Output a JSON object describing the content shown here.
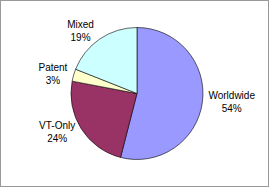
{
  "chart_data": {
    "type": "pie",
    "categories": [
      "Worldwide",
      "VT-Only",
      "Patent",
      "Mixed"
    ],
    "values": [
      54,
      24,
      3,
      19
    ],
    "value_labels": [
      "54%",
      "24%",
      "3%",
      "19%"
    ],
    "colors": [
      "#9999ff",
      "#993366",
      "#ffffcc",
      "#ccffff"
    ],
    "data_labels": true
  }
}
